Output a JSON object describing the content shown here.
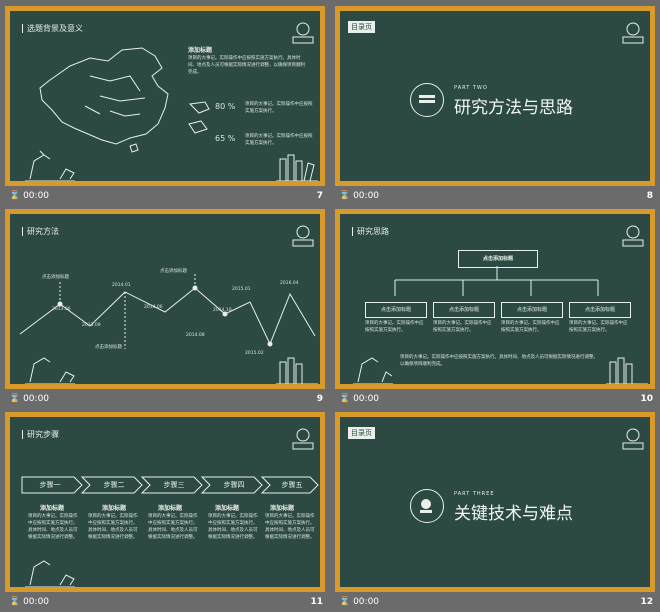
{
  "slides": [
    {
      "num": "7",
      "duration": "00:00",
      "title": "选题背景及意义",
      "heading": "添加标题",
      "body": "项目的大事记。实际操作中应按照实施方案执行。具体时间、地点及人员可根据实际情况进行调整，以确保项目顺利完成。",
      "stat1": "80",
      "stat2": "65",
      "unit": "%",
      "stat_text": "项目的大事记。实际操作中应按照实施方案执行。"
    },
    {
      "num": "8",
      "duration": "00:00",
      "badge": "目录页",
      "part": "PART TWO",
      "title": "研究方法与思路"
    },
    {
      "num": "9",
      "duration": "00:00",
      "title": "研究方法",
      "labels": [
        "点击添加标题",
        "点击添加标题",
        "点击添加标题"
      ],
      "points": [
        "2013.06",
        "2013.09",
        "2014.01",
        "2014.06",
        "2014.08",
        "2014.10",
        "2015.01",
        "2015.02",
        "2016.04"
      ]
    },
    {
      "num": "10",
      "duration": "00:00",
      "title": "研究思路",
      "root": "点击添加标题",
      "children": [
        "点击添加标题",
        "点击添加标题",
        "点击添加标题",
        "点击添加标题"
      ],
      "child_text": "项目的大事记。实际操作中应按照实施方案执行。",
      "bottom_text": "项目的大事记。实际操作中应按照实施方案执行。具体时间、地点及人员可根据实际情况进行调整，以确保项目顺利完成。"
    },
    {
      "num": "11",
      "duration": "00:00",
      "title": "研究步骤",
      "steps": [
        "步骤一",
        "步骤二",
        "步骤三",
        "步骤四",
        "步骤五"
      ],
      "col_head": "添加标题",
      "col_text": "项目的大事记。实际操作中应按照实施方案执行。具体时间、地点及人员可根据实际情况进行调整。"
    },
    {
      "num": "12",
      "duration": "00:00",
      "badge": "目录页",
      "part": "PART THREE",
      "title": "关键技术与难点"
    }
  ]
}
